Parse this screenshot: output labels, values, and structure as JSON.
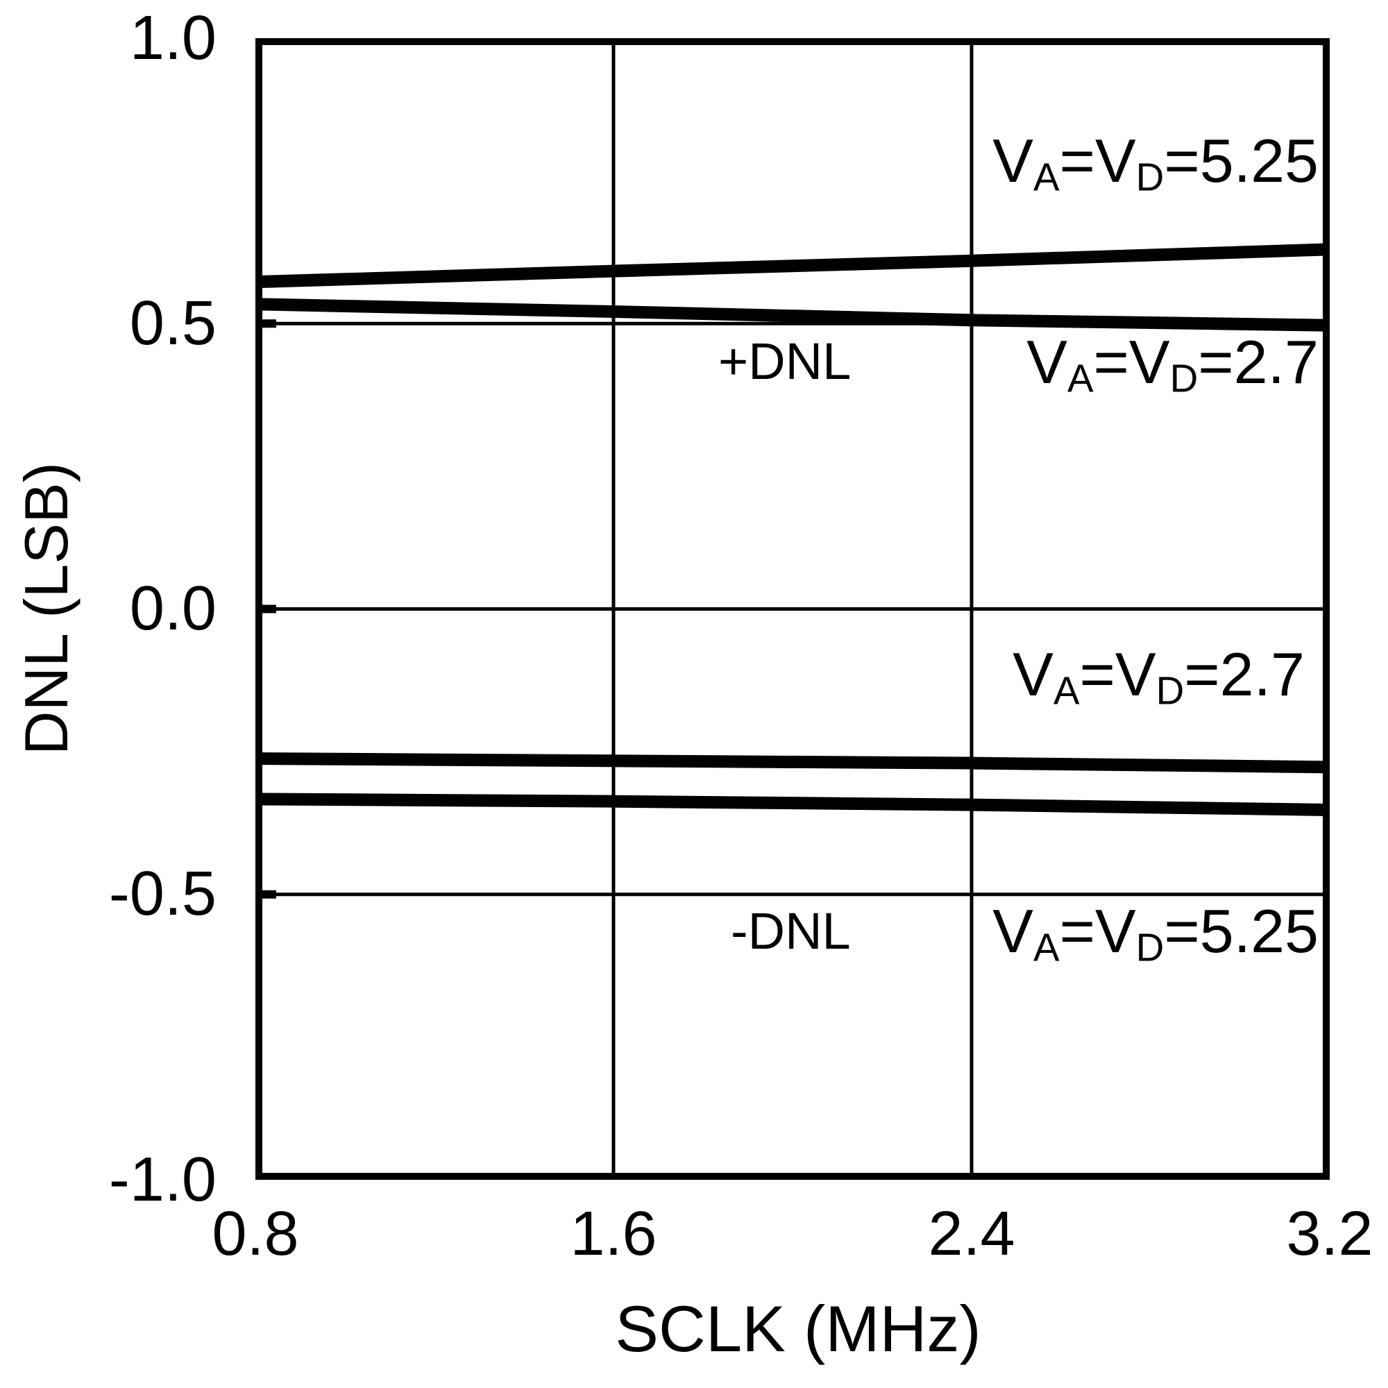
{
  "chart_data": {
    "type": "line",
    "title": "",
    "xlabel": "SCLK (MHz)",
    "ylabel": "DNL (LSB)",
    "xlim": [
      0.8,
      3.2
    ],
    "ylim": [
      -1.0,
      1.0
    ],
    "x": [
      0.8,
      1.6,
      2.4,
      3.2
    ],
    "x_tick_labels": [
      "0.8",
      "1.6",
      "2.4",
      "3.2"
    ],
    "y_ticks": [
      1.0,
      0.5,
      0.0,
      -0.5,
      -1.0
    ],
    "y_tick_labels": [
      "1.0",
      "0.5",
      "0.0",
      "-0.5",
      "-1.0"
    ],
    "x_gridlines": [
      1.6,
      2.4
    ],
    "y_gridlines": [
      0.5,
      0.0,
      -0.5
    ],
    "grid": true,
    "legend_position": "in-plot annotations",
    "series": [
      {
        "name": "+DNL, VA=VD=5.25",
        "y": [
          0.573,
          0.592,
          0.61,
          0.63
        ]
      },
      {
        "name": "+DNL, VA=VD=2.7",
        "y": [
          0.534,
          0.521,
          0.506,
          0.497
        ]
      },
      {
        "name": "-DNL, VA=VD=2.7",
        "y": [
          -0.262,
          -0.266,
          -0.27,
          -0.277
        ]
      },
      {
        "name": "-DNL, VA=VD=5.25",
        "y": [
          -0.333,
          -0.337,
          -0.343,
          -0.352
        ]
      }
    ]
  },
  "axes": {
    "x_title": "SCLK (MHz)",
    "y_title": "DNL (LSB)"
  },
  "annotations": {
    "plus_dnl": "+DNL",
    "minus_dnl": "-DNL",
    "top_right_525": {
      "v1": "V",
      "sub_a": "A",
      "mid": "=V",
      "sub_d": "D",
      "value": "=5.25"
    },
    "mid_right_27": {
      "v1": "V",
      "sub_a": "A",
      "mid": "=V",
      "sub_d": "D",
      "value": "=2.7"
    },
    "low_right_27": {
      "v1": "V",
      "sub_a": "A",
      "mid": "=V",
      "sub_d": "D",
      "value": "=2.7"
    },
    "bottom_right_525": {
      "v1": "V",
      "sub_a": "A",
      "mid": "=V",
      "sub_d": "D",
      "value": "=5.25"
    }
  },
  "colors": {
    "foreground": "#000000",
    "background": "#ffffff",
    "line": "#000000",
    "grid": "#000000"
  }
}
